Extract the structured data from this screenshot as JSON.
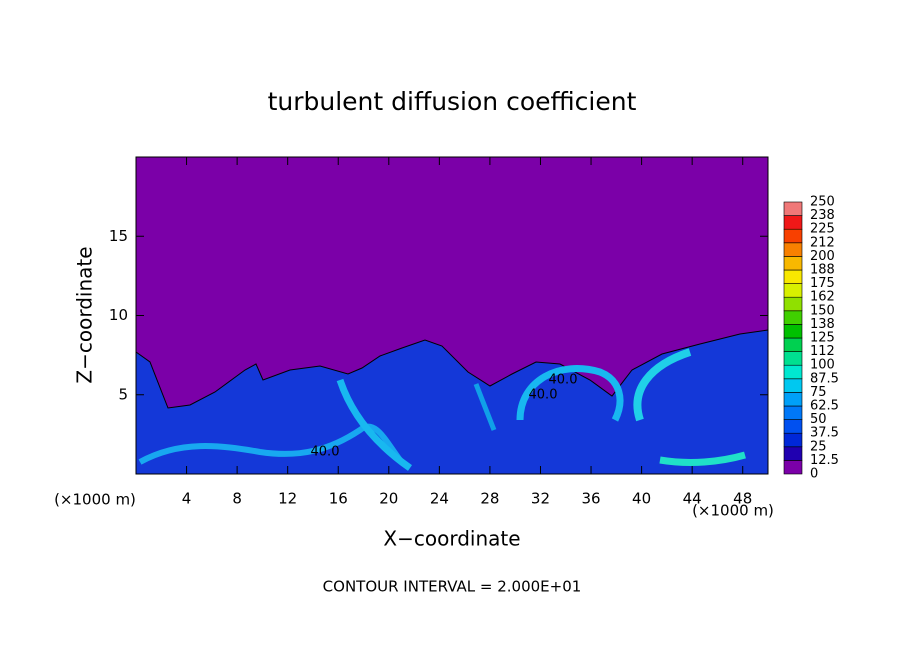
{
  "chart_data": {
    "type": "contour",
    "title": "turbulent diffusion coefficient",
    "x_label": "X−coordinate",
    "y_label": "Z−coordinate",
    "x_unit_left": "(×1000 m)",
    "x_unit_right": "(×1000 m)",
    "footer": "CONTOUR INTERVAL = 2.000E+01",
    "contour_labels": [
      "40.0",
      "40.0",
      "40.0"
    ],
    "xlim": [
      0,
      50
    ],
    "xticks": [
      4,
      8,
      12,
      16,
      20,
      24,
      28,
      32,
      36,
      40,
      44,
      48
    ],
    "ylim": [
      0,
      20
    ],
    "yticks": [
      5,
      10,
      15
    ],
    "colorbar": {
      "ticks": [
        0,
        12.5,
        25,
        37.5,
        50,
        62.5,
        75,
        87.5,
        100,
        {
          "value": 112.5,
          "label": "112"
        },
        125,
        {
          "value": 137.5,
          "label": "138"
        },
        150,
        {
          "value": 162.5,
          "label": "162"
        },
        175,
        {
          "value": 187.5,
          "label": "188"
        },
        200,
        {
          "value": 212.5,
          "label": "212"
        },
        225,
        {
          "value": 237.5,
          "label": "238"
        },
        250
      ],
      "colors": [
        "#7b00a8",
        "#2000b0",
        "#0028d8",
        "#0050f0",
        "#0078f8",
        "#00a0f8",
        "#00c8f0",
        "#00e8d0",
        "#00e090",
        "#00d050",
        "#00c000",
        "#40d000",
        "#90e000",
        "#d8f000",
        "#f8e800",
        "#f8b800",
        "#f88000",
        "#f84000",
        "#f01818",
        "#f07878"
      ]
    }
  }
}
